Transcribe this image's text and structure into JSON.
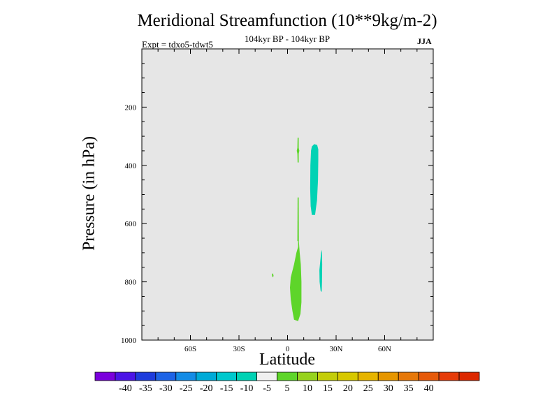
{
  "chart_data": {
    "type": "contour",
    "title": "Meridional Streamfunction (10**9kg/m-2)",
    "subtitle": "104kyr BP - 104kyr BP",
    "experiment": "Expt = tdxo5-tdwt5",
    "season": "JJA",
    "xlabel": "Latitude",
    "ylabel": "Pressure (in hPa)",
    "xlim": [
      -90,
      90
    ],
    "ylim": [
      1000,
      0
    ],
    "x_ticks": [
      {
        "value": -60,
        "label": "60S"
      },
      {
        "value": -30,
        "label": "30S"
      },
      {
        "value": 0,
        "label": "0"
      },
      {
        "value": 30,
        "label": "30N"
      },
      {
        "value": 60,
        "label": "60N"
      }
    ],
    "y_ticks": [
      {
        "value": 200,
        "label": "200"
      },
      {
        "value": 400,
        "label": "400"
      },
      {
        "value": 600,
        "label": "600"
      },
      {
        "value": 800,
        "label": "800"
      },
      {
        "value": 1000,
        "label": "1000"
      }
    ],
    "background_color": "#e6e6e6",
    "regions": [
      {
        "name": "positive 5-10 lower",
        "color": "#5ed52a",
        "points": [
          [
            6.5,
            680
          ],
          [
            5.5,
            700
          ],
          [
            4,
            740
          ],
          [
            2,
            785
          ],
          [
            1.5,
            820
          ],
          [
            2,
            860
          ],
          [
            3,
            900
          ],
          [
            4,
            930
          ],
          [
            6.5,
            935
          ],
          [
            8,
            910
          ],
          [
            8.6,
            870
          ],
          [
            8.6,
            800
          ],
          [
            8.2,
            740
          ],
          [
            7.5,
            700
          ],
          [
            7,
            660
          ],
          [
            6.5,
            650
          ]
        ]
      },
      {
        "name": "positive 5-10 thin column",
        "color": "#5ed52a",
        "points": [
          [
            6.6,
            510
          ],
          [
            6.2,
            510
          ],
          [
            6.1,
            660
          ],
          [
            7,
            660
          ],
          [
            6.9,
            510
          ]
        ]
      },
      {
        "name": "positive 5-10 upper",
        "color": "#5ed52a",
        "points": [
          [
            6.6,
            305
          ],
          [
            6.2,
            305
          ],
          [
            6.1,
            340
          ],
          [
            5.7,
            350
          ],
          [
            6.1,
            360
          ],
          [
            6.2,
            390
          ],
          [
            6.9,
            390
          ],
          [
            6.9,
            360
          ],
          [
            7.3,
            350
          ],
          [
            6.9,
            340
          ],
          [
            6.9,
            305
          ]
        ]
      },
      {
        "name": "positive 5-10 speck",
        "color": "#5ed52a",
        "points": [
          [
            -9.7,
            775
          ],
          [
            -9,
            770
          ],
          [
            -8.6,
            780
          ],
          [
            -9.3,
            785
          ]
        ]
      },
      {
        "name": "negative -10 to -5 upper",
        "color": "#00d2b4",
        "points": [
          [
            14.5,
            350
          ],
          [
            15,
            335
          ],
          [
            16.5,
            327
          ],
          [
            18.3,
            330
          ],
          [
            19,
            345
          ],
          [
            19,
            380
          ],
          [
            18.8,
            450
          ],
          [
            18.2,
            520
          ],
          [
            17,
            570
          ],
          [
            15,
            570
          ],
          [
            14.3,
            540
          ],
          [
            14,
            480
          ],
          [
            14.1,
            400
          ]
        ]
      },
      {
        "name": "negative -10 to -5 lower",
        "color": "#00d2b4",
        "points": [
          [
            21,
            690
          ],
          [
            20.7,
            700
          ],
          [
            19.7,
            760
          ],
          [
            19.8,
            800
          ],
          [
            20.4,
            830
          ],
          [
            21.1,
            835
          ],
          [
            21.3,
            800
          ],
          [
            21.4,
            740
          ],
          [
            21.3,
            700
          ]
        ]
      }
    ],
    "colorbar": {
      "colors": [
        "#7a00dc",
        "#4b14e6",
        "#1e3cdc",
        "#1e64e6",
        "#148ce6",
        "#00aad7",
        "#00c8cd",
        "#00d2b4",
        "#f0f0f0",
        "#5ed52a",
        "#96d21e",
        "#c3cd0a",
        "#d7c800",
        "#e6b400",
        "#e69600",
        "#e6780a",
        "#e65a0a",
        "#e63c0a",
        "#dc2800"
      ],
      "labels": [
        "-40",
        "-35",
        "-30",
        "-25",
        "-20",
        "-15",
        "-10",
        "-5",
        "5",
        "10",
        "15",
        "20",
        "25",
        "30",
        "35",
        "40"
      ]
    }
  }
}
